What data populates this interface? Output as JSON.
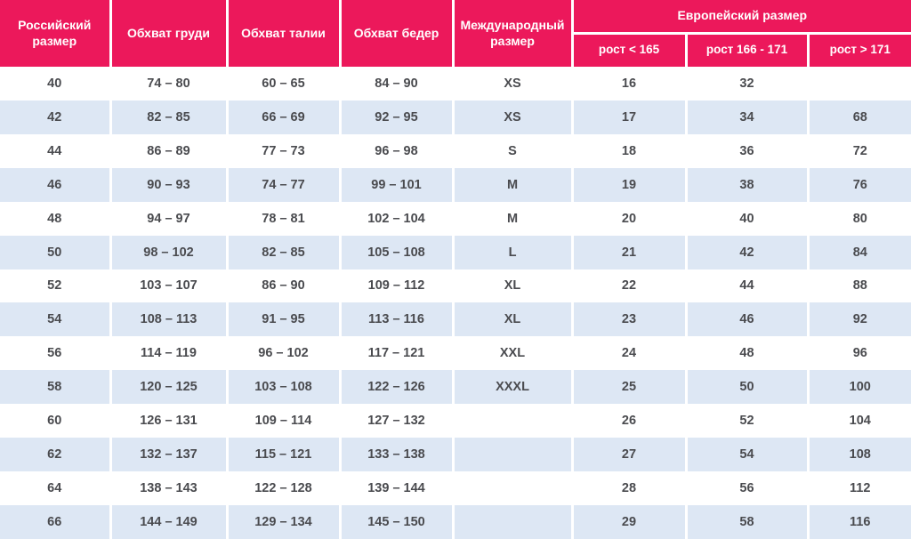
{
  "colors": {
    "header_bg": "#EC185B",
    "header_text": "#FFFFFF",
    "row_even_bg": "#DDE7F4",
    "row_odd_bg": "#FFFFFF",
    "body_text": "#4A4B4F"
  },
  "chart_data": {
    "type": "table",
    "title": "",
    "header": {
      "russian_size": "Российский размер",
      "chest": "Обхват груди",
      "waist": "Обхват талии",
      "hips": "Обхват бедер",
      "international_size": "Международный размер",
      "european_size_group": "Европейский размер",
      "european_height_cols": [
        "рост < 165",
        "рост 166 - 171",
        "рост > 171"
      ]
    },
    "rows": [
      [
        "40",
        "74 – 80",
        "60 – 65",
        "84 – 90",
        "XS",
        "16",
        "32",
        ""
      ],
      [
        "42",
        "82 – 85",
        "66 – 69",
        "92 – 95",
        "XS",
        "17",
        "34",
        "68"
      ],
      [
        "44",
        "86 – 89",
        "77 – 73",
        "96 – 98",
        "S",
        "18",
        "36",
        "72"
      ],
      [
        "46",
        "90 – 93",
        "74 – 77",
        "99 – 101",
        "M",
        "19",
        "38",
        "76"
      ],
      [
        "48",
        "94 – 97",
        "78 – 81",
        "102 – 104",
        "M",
        "20",
        "40",
        "80"
      ],
      [
        "50",
        "98 – 102",
        "82 – 85",
        "105 – 108",
        "L",
        "21",
        "42",
        "84"
      ],
      [
        "52",
        "103 – 107",
        "86 – 90",
        "109 – 112",
        "XL",
        "22",
        "44",
        "88"
      ],
      [
        "54",
        "108 – 113",
        "91 – 95",
        "113 – 116",
        "XL",
        "23",
        "46",
        "92"
      ],
      [
        "56",
        "114 – 119",
        "96 – 102",
        "117 – 121",
        "XXL",
        "24",
        "48",
        "96"
      ],
      [
        "58",
        "120 – 125",
        "103 – 108",
        "122 – 126",
        "XXXL",
        "25",
        "50",
        "100"
      ],
      [
        "60",
        "126 – 131",
        "109 – 114",
        "127 – 132",
        "",
        "26",
        "52",
        "104"
      ],
      [
        "62",
        "132 – 137",
        "115 – 121",
        "133 – 138",
        "",
        "27",
        "54",
        "108"
      ],
      [
        "64",
        "138 – 143",
        "122 – 128",
        "139 – 144",
        "",
        "28",
        "56",
        "112"
      ],
      [
        "66",
        "144 – 149",
        "129 – 134",
        "145 – 150",
        "",
        "29",
        "58",
        "116"
      ]
    ]
  }
}
